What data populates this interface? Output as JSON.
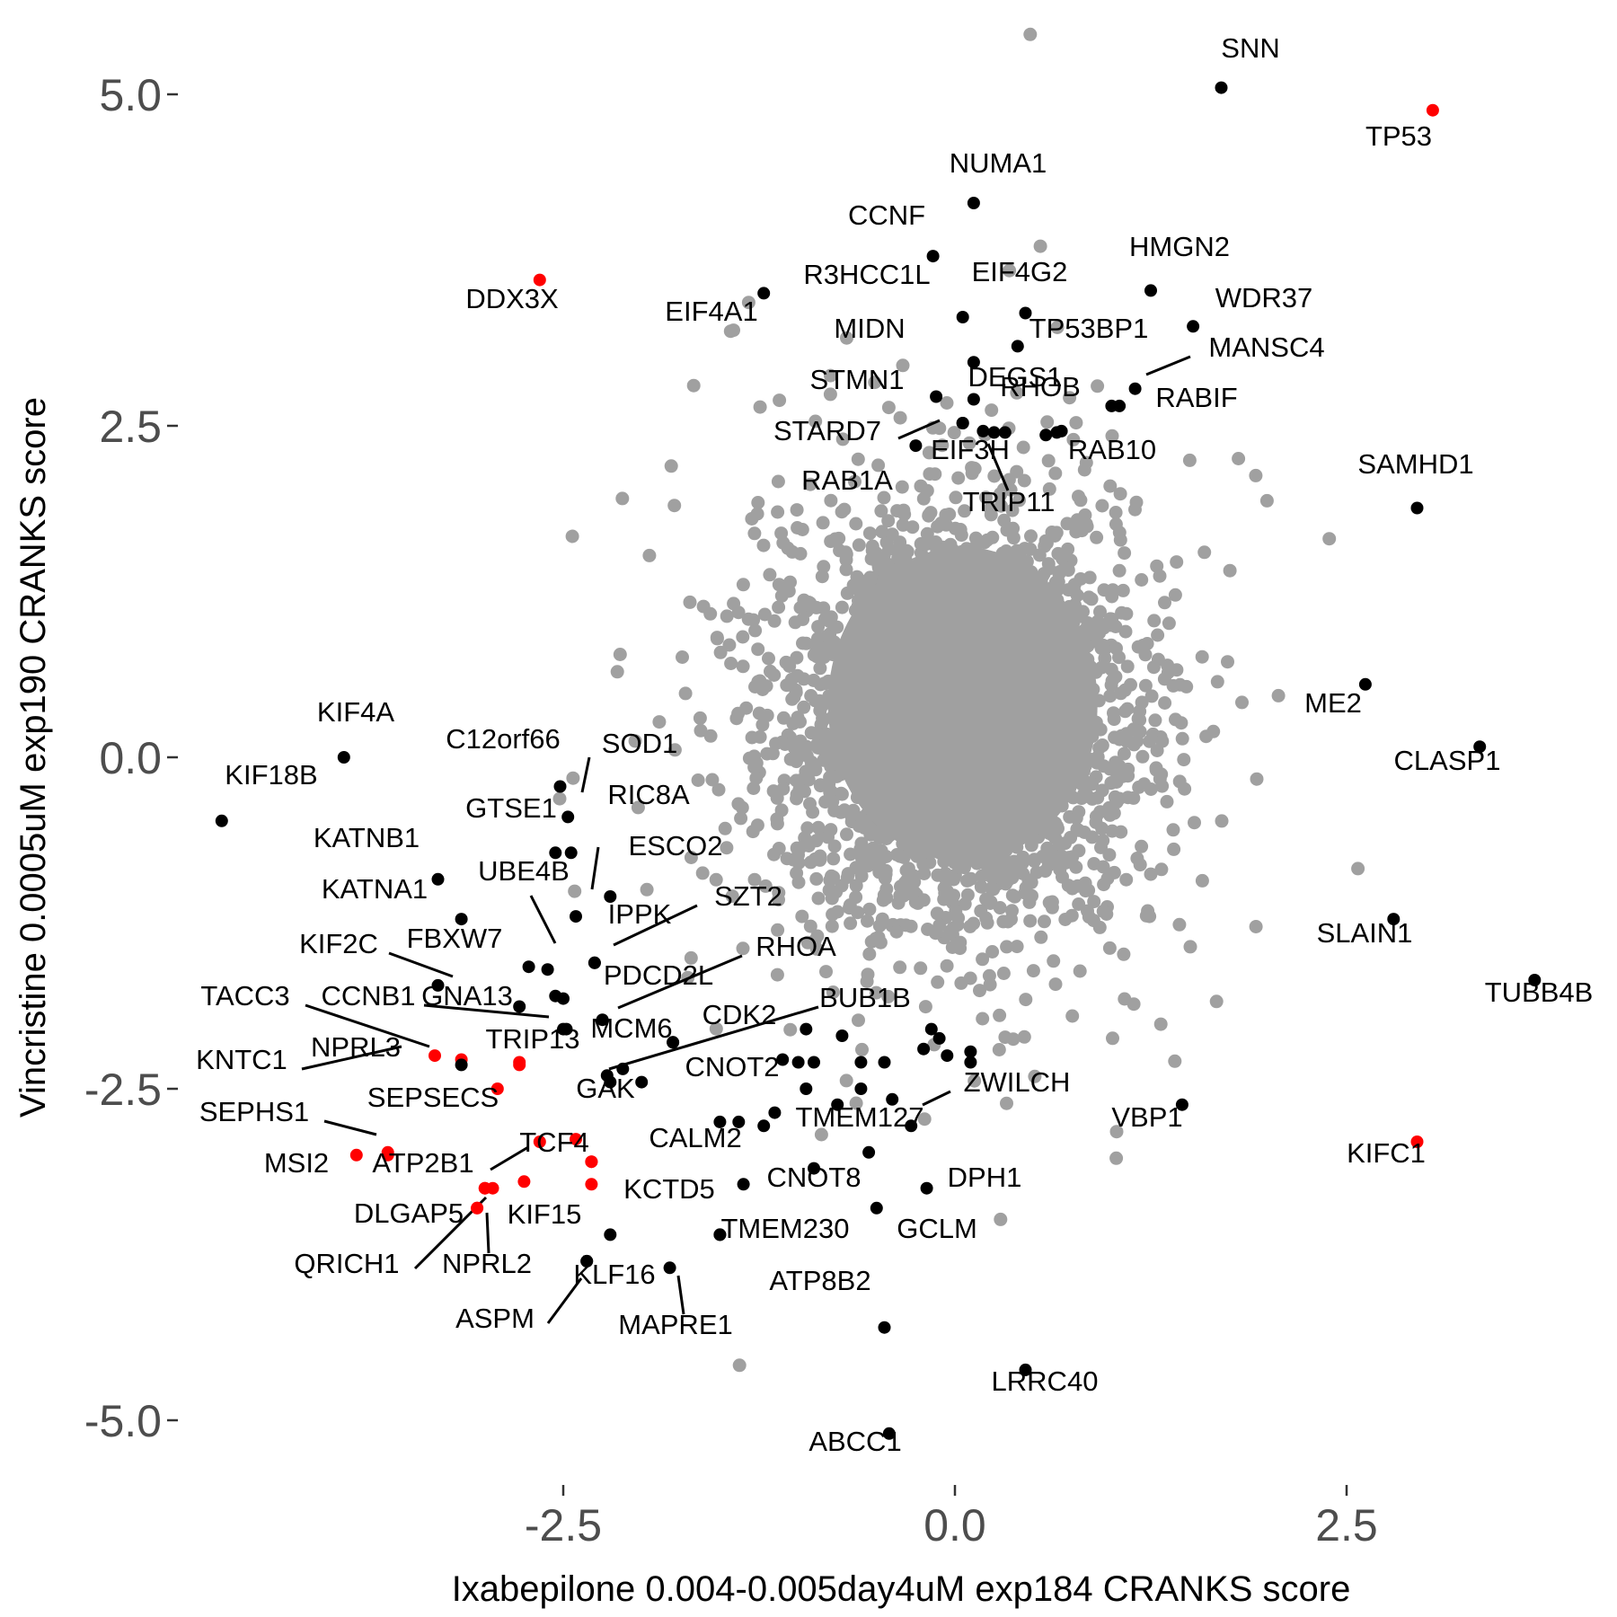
{
  "chart_data": {
    "type": "scatter",
    "xlabel": "Ixabepilone 0.004-0.005day4uM exp184 CRANKS score",
    "ylabel": "Vincristine 0.0005uM exp190 CRANKS score",
    "xlim": [
      -4.8,
      4.1
    ],
    "ylim": [
      -5.55,
      5.6
    ],
    "x_ticks": [
      -2.5,
      0.0,
      2.5
    ],
    "x_tick_labels": [
      "-2.5",
      "0.0",
      "2.5"
    ],
    "y_ticks": [
      -5.0,
      -2.5,
      0.0,
      2.5,
      5.0
    ],
    "y_tick_labels": [
      "-5.0",
      "-2.5",
      "0.0",
      "2.5",
      "5.0"
    ],
    "grid": false,
    "colors": {
      "background": "#ffffff",
      "background_points": "#a0a0a0",
      "highlight": "#000000",
      "special": "#ff0000"
    },
    "background_cloud": {
      "count": 3000,
      "center": [
        0.0,
        0.3
      ],
      "description_only": false
    },
    "labeled_points": [
      {
        "gene": "SNN",
        "x": 1.7,
        "y": 5.05,
        "color": "black"
      },
      {
        "gene": "TP53",
        "x": 3.05,
        "y": 4.88,
        "color": "red"
      },
      {
        "gene": "NUMA1",
        "x": 0.12,
        "y": 4.18,
        "color": "black"
      },
      {
        "gene": "CCNF",
        "x": -0.14,
        "y": 3.78,
        "color": "black"
      },
      {
        "gene": "DDX3X",
        "x": -2.65,
        "y": 3.6,
        "color": "red"
      },
      {
        "gene": "EIF4A1",
        "x": -1.22,
        "y": 3.5,
        "color": "black"
      },
      {
        "gene": "HMGN2",
        "x": 1.25,
        "y": 3.52,
        "color": "black"
      },
      {
        "gene": "R3HCC1L",
        "x": 0.05,
        "y": 3.32,
        "color": "black"
      },
      {
        "gene": "EIF4G2",
        "x": 0.45,
        "y": 3.35,
        "color": "black"
      },
      {
        "gene": "WDR37",
        "x": 1.52,
        "y": 3.25,
        "color": "black"
      },
      {
        "gene": "MIDN",
        "x": 0.12,
        "y": 2.98,
        "color": "black"
      },
      {
        "gene": "TP53BP1",
        "x": 0.4,
        "y": 3.1,
        "color": "black"
      },
      {
        "gene": "MANSC4",
        "x": 1.15,
        "y": 2.78,
        "color": "black"
      },
      {
        "gene": "STMN1",
        "x": -0.12,
        "y": 2.72,
        "color": "black"
      },
      {
        "gene": "DEGS1",
        "x": 0.12,
        "y": 2.7,
        "color": "black"
      },
      {
        "gene": "RHOB",
        "x": 1.05,
        "y": 2.65,
        "color": "black"
      },
      {
        "gene": "RABIF",
        "x": 1.0,
        "y": 2.65,
        "color": "black"
      },
      {
        "gene": "STARD7",
        "x": 0.05,
        "y": 2.52,
        "color": "black"
      },
      {
        "gene": "EIF3H",
        "x": 0.25,
        "y": 2.45,
        "color": "black"
      },
      {
        "gene": "RAB10",
        "x": 0.65,
        "y": 2.45,
        "color": "black"
      },
      {
        "gene": "RAB1A",
        "x": -0.25,
        "y": 2.35,
        "color": "black"
      },
      {
        "gene": "TRIP11",
        "x": 0.32,
        "y": 2.45,
        "color": "black"
      },
      {
        "gene": "SAMHD1",
        "x": 2.95,
        "y": 1.88,
        "color": "black"
      },
      {
        "gene": "ME2",
        "x": 2.62,
        "y": 0.55,
        "color": "black"
      },
      {
        "gene": "CLASP1",
        "x": 3.35,
        "y": 0.08,
        "color": "black"
      },
      {
        "gene": "KIF4A",
        "x": -3.9,
        "y": 0.0,
        "color": "black"
      },
      {
        "gene": "KIF18B",
        "x": -4.68,
        "y": -0.48,
        "color": "black"
      },
      {
        "gene": "C12orf66",
        "x": -2.52,
        "y": -0.22,
        "color": "black"
      },
      {
        "gene": "SOD1",
        "x": -2.47,
        "y": -0.45,
        "color": "black"
      },
      {
        "gene": "RIC8A",
        "x": -2.55,
        "y": -0.72,
        "color": "black"
      },
      {
        "gene": "GTSE1",
        "x": -2.45,
        "y": -0.72,
        "color": "black"
      },
      {
        "gene": "KATNB1",
        "x": -3.3,
        "y": -0.92,
        "color": "black"
      },
      {
        "gene": "ESCO2",
        "x": -2.42,
        "y": -1.2,
        "color": "black"
      },
      {
        "gene": "KATNA1",
        "x": -3.15,
        "y": -1.22,
        "color": "black"
      },
      {
        "gene": "UBE4B",
        "x": -2.6,
        "y": -1.6,
        "color": "black"
      },
      {
        "gene": "SZT2",
        "x": -2.3,
        "y": -1.55,
        "color": "black"
      },
      {
        "gene": "IPPK",
        "x": -2.3,
        "y": -1.55,
        "color": "black"
      },
      {
        "gene": "SLAIN1",
        "x": 2.8,
        "y": -1.22,
        "color": "black"
      },
      {
        "gene": "FBXW7",
        "x": -2.72,
        "y": -1.58,
        "color": "black"
      },
      {
        "gene": "KIF2C",
        "x": -3.3,
        "y": -1.72,
        "color": "black"
      },
      {
        "gene": "RHOA",
        "x": -2.25,
        "y": -1.98,
        "color": "black"
      },
      {
        "gene": "PDCD2L",
        "x": -2.5,
        "y": -1.82,
        "color": "black"
      },
      {
        "gene": "TUBB4B",
        "x": 3.7,
        "y": -1.68,
        "color": "black"
      },
      {
        "gene": "TACC3",
        "x": -3.32,
        "y": -2.25,
        "color": "red"
      },
      {
        "gene": "CCNB1",
        "x": -2.5,
        "y": -2.05,
        "color": "black"
      },
      {
        "gene": "GNA13",
        "x": -2.78,
        "y": -1.88,
        "color": "black"
      },
      {
        "gene": "BUB1B",
        "x": -2.22,
        "y": -2.4,
        "color": "black"
      },
      {
        "gene": "CDK2",
        "x": -1.8,
        "y": -2.15,
        "color": "black"
      },
      {
        "gene": "MCM6",
        "x": -1.8,
        "y": -2.15,
        "color": "black"
      },
      {
        "gene": "NPRL3",
        "x": -3.15,
        "y": -2.28,
        "color": "red"
      },
      {
        "gene": "KNTC1",
        "x": -3.15,
        "y": -2.32,
        "color": "black"
      },
      {
        "gene": "TRIP13",
        "x": -2.78,
        "y": -2.32,
        "color": "red"
      },
      {
        "gene": "CNOT2",
        "x": -2.0,
        "y": -2.45,
        "color": "black"
      },
      {
        "gene": "GAK",
        "x": -2.2,
        "y": -2.45,
        "color": "black"
      },
      {
        "gene": "ZWILCH",
        "x": -0.28,
        "y": -2.78,
        "color": "black"
      },
      {
        "gene": "TMEM127",
        "x": -0.55,
        "y": -2.98,
        "color": "black"
      },
      {
        "gene": "VBP1",
        "x": 1.45,
        "y": -2.62,
        "color": "black"
      },
      {
        "gene": "SEPSECS",
        "x": -3.62,
        "y": -2.98,
        "color": "red"
      },
      {
        "gene": "SEPHS1",
        "x": -3.62,
        "y": -3.0,
        "color": "red"
      },
      {
        "gene": "MSI2",
        "x": -3.82,
        "y": -3.0,
        "color": "red"
      },
      {
        "gene": "TCF4",
        "x": -2.32,
        "y": -3.05,
        "color": "red"
      },
      {
        "gene": "CALM2",
        "x": -1.35,
        "y": -3.22,
        "color": "black"
      },
      {
        "gene": "KIFC1",
        "x": 2.95,
        "y": -2.9,
        "color": "red"
      },
      {
        "gene": "ATP2B1",
        "x": -3.0,
        "y": -3.25,
        "color": "red"
      },
      {
        "gene": "CNOT8",
        "x": -0.9,
        "y": -3.1,
        "color": "black"
      },
      {
        "gene": "DPH1",
        "x": -0.18,
        "y": -3.25,
        "color": "black"
      },
      {
        "gene": "DLGAP5",
        "x": -3.05,
        "y": -3.4,
        "color": "red"
      },
      {
        "gene": "KCTD5",
        "x": -1.5,
        "y": -3.6,
        "color": "black"
      },
      {
        "gene": "KIF15",
        "x": -2.2,
        "y": -3.6,
        "color": "black"
      },
      {
        "gene": "TMEM230",
        "x": -1.5,
        "y": -3.6,
        "color": "black"
      },
      {
        "gene": "GCLM",
        "x": -0.5,
        "y": -3.4,
        "color": "black"
      },
      {
        "gene": "QRICH1",
        "x": -3.05,
        "y": -3.4,
        "color": "red"
      },
      {
        "gene": "NPRL2",
        "x": -3.0,
        "y": -3.25,
        "color": "red"
      },
      {
        "gene": "KLF16",
        "x": -2.35,
        "y": -3.8,
        "color": "black"
      },
      {
        "gene": "ATP8B2",
        "x": -0.45,
        "y": -4.3,
        "color": "black"
      },
      {
        "gene": "MAPRE1",
        "x": -1.82,
        "y": -3.85,
        "color": "black"
      },
      {
        "gene": "ASPM",
        "x": -2.35,
        "y": -3.8,
        "color": "black"
      },
      {
        "gene": "LRRC40",
        "x": 0.45,
        "y": -4.62,
        "color": "black"
      },
      {
        "gene": "ABCC1",
        "x": -0.42,
        "y": -5.1,
        "color": "black"
      }
    ],
    "unlabeled_highlight_points": [
      {
        "x": -0.95,
        "y": -2.05,
        "color": "black"
      },
      {
        "x": -0.72,
        "y": -2.1,
        "color": "black"
      },
      {
        "x": -1.0,
        "y": -2.3,
        "color": "black"
      },
      {
        "x": -1.1,
        "y": -2.28,
        "color": "black"
      },
      {
        "x": -0.9,
        "y": -2.3,
        "color": "black"
      },
      {
        "x": -0.6,
        "y": -2.3,
        "color": "black"
      },
      {
        "x": -0.45,
        "y": -2.3,
        "color": "black"
      },
      {
        "x": -0.6,
        "y": -2.5,
        "color": "black"
      },
      {
        "x": -0.15,
        "y": -2.05,
        "color": "black"
      },
      {
        "x": -0.1,
        "y": -2.12,
        "color": "black"
      },
      {
        "x": -0.05,
        "y": -2.25,
        "color": "black"
      },
      {
        "x": -0.2,
        "y": -2.2,
        "color": "black"
      },
      {
        "x": 0.1,
        "y": -2.3,
        "color": "black"
      },
      {
        "x": 0.1,
        "y": -2.22,
        "color": "black"
      },
      {
        "x": -0.95,
        "y": -2.5,
        "color": "black"
      },
      {
        "x": -0.75,
        "y": -2.62,
        "color": "black"
      },
      {
        "x": -0.4,
        "y": -2.58,
        "color": "black"
      },
      {
        "x": -1.5,
        "y": -2.75,
        "color": "black"
      },
      {
        "x": -1.38,
        "y": -2.75,
        "color": "black"
      },
      {
        "x": -1.22,
        "y": -2.78,
        "color": "black"
      },
      {
        "x": -1.15,
        "y": -2.68,
        "color": "black"
      },
      {
        "x": -2.55,
        "y": -1.8,
        "color": "black"
      },
      {
        "x": -2.48,
        "y": -2.05,
        "color": "black"
      },
      {
        "x": -2.2,
        "y": -1.05,
        "color": "black"
      },
      {
        "x": -2.12,
        "y": -2.35,
        "color": "black"
      },
      {
        "x": 0.05,
        "y": 2.52,
        "color": "black"
      },
      {
        "x": 0.18,
        "y": 2.46,
        "color": "black"
      },
      {
        "x": 0.58,
        "y": 2.43,
        "color": "black"
      },
      {
        "x": 0.68,
        "y": 2.46,
        "color": "black"
      },
      {
        "x": -2.78,
        "y": -2.3,
        "color": "red"
      },
      {
        "x": -2.65,
        "y": -2.9,
        "color": "red"
      },
      {
        "x": -2.42,
        "y": -2.88,
        "color": "red"
      },
      {
        "x": -2.32,
        "y": -3.05,
        "color": "red"
      },
      {
        "x": -2.75,
        "y": -3.2,
        "color": "red"
      },
      {
        "x": -2.95,
        "y": -3.25,
        "color": "red"
      },
      {
        "x": -2.32,
        "y": -3.22,
        "color": "red"
      },
      {
        "x": -2.92,
        "y": -2.5,
        "color": "red"
      }
    ]
  }
}
